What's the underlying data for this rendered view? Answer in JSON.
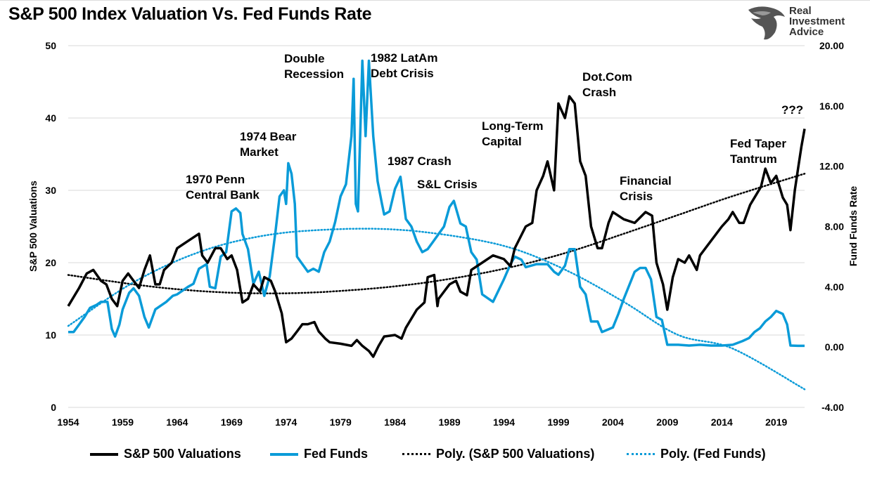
{
  "title": "S&P 500 Index Valuation Vs. Fed Funds Rate",
  "logo": {
    "text_lines": [
      "Real",
      "Investment",
      "Advice"
    ]
  },
  "chart_data": {
    "type": "line",
    "title": "S&P 500 Index Valuation Vs. Fed Funds Rate",
    "xlabel": "",
    "ylabel": "S&P 500 Valuations",
    "y2label": "Fund Funds Rate",
    "xlim": [
      1954,
      2021.6
    ],
    "ylim": [
      0,
      50
    ],
    "y2lim": [
      -4,
      20
    ],
    "x_ticks": [
      "1954",
      "1959",
      "1964",
      "1969",
      "1974",
      "1979",
      "1984",
      "1989",
      "1994",
      "1999",
      "2004",
      "2009",
      "2014",
      "2019"
    ],
    "y_ticks": [
      "0",
      "10",
      "20",
      "30",
      "40",
      "50"
    ],
    "y2_ticks": [
      "-4.00",
      "0.00",
      "4.00",
      "8.00",
      "12.00",
      "16.00",
      "20.00"
    ],
    "grid": true,
    "legend_position": "bottom",
    "colors": {
      "sp500": "#000000",
      "fedfunds": "#0a9bd8"
    },
    "series": [
      {
        "name": "S&P 500 Valuations",
        "axis": "left",
        "style": "solid",
        "x": [
          1954,
          1955,
          1955.7,
          1956.3,
          1957,
          1957.5,
          1958,
          1958.5,
          1959,
          1959.5,
          1960,
          1960.5,
          1961,
          1961.5,
          1962,
          1962.4,
          1962.8,
          1963.5,
          1964,
          1965,
          1966,
          1966.3,
          1966.8,
          1967.5,
          1968,
          1968.6,
          1969,
          1969.5,
          1970,
          1970.5,
          1971,
          1971.6,
          1972,
          1972.6,
          1973,
          1973.6,
          1974,
          1974.5,
          1975,
          1975.5,
          1976,
          1976.6,
          1977,
          1977.6,
          1978,
          1979,
          1980,
          1980.5,
          1981,
          1981.6,
          1982,
          1982.5,
          1983,
          1984,
          1984.6,
          1985,
          1986,
          1986.7,
          1987,
          1987.6,
          1987.9,
          1988,
          1989,
          1989.6,
          1990,
          1990.6,
          1991,
          1992,
          1993,
          1994,
          1994.6,
          1995,
          1996,
          1996.6,
          1997,
          1997.6,
          1998,
          1998.6,
          1999,
          1999.6,
          2000,
          2000.5,
          2001,
          2001.5,
          2002,
          2002.6,
          2003,
          2003.6,
          2004,
          2005,
          2006,
          2007,
          2007.6,
          2008,
          2008.6,
          2009,
          2009.5,
          2010,
          2010.6,
          2011,
          2011.7,
          2012,
          2013,
          2014,
          2014.6,
          2015,
          2015.6,
          2016,
          2016.6,
          2017,
          2017.6,
          2018,
          2018.5,
          2019,
          2019.6,
          2020,
          2020.3,
          2020.7,
          2021,
          2021.3,
          2021.6
        ],
        "values": [
          14,
          16.5,
          18.5,
          19,
          17.5,
          17,
          15,
          14,
          17.5,
          18.5,
          17.5,
          16.5,
          19,
          21,
          17,
          17,
          19,
          20,
          22,
          23,
          24,
          21,
          20,
          22,
          22,
          20.5,
          21,
          19,
          14.5,
          15,
          17,
          16,
          18,
          17.5,
          16,
          13,
          9,
          9.5,
          10.5,
          11.5,
          11.5,
          11.8,
          10.5,
          9.5,
          9,
          8.8,
          8.5,
          9.3,
          8.5,
          7.8,
          7,
          8.5,
          9.8,
          10,
          9.5,
          11,
          13.5,
          14.5,
          18,
          18.3,
          14,
          15,
          17,
          17.5,
          16,
          15.5,
          19,
          20,
          21,
          20.5,
          19.5,
          22,
          25,
          25.5,
          30,
          32,
          34,
          30,
          42,
          40,
          43,
          42,
          34,
          32,
          25,
          22,
          22,
          25.5,
          27,
          26,
          25.5,
          27,
          26.5,
          20,
          17,
          13.5,
          18,
          20.5,
          20,
          21,
          19,
          21,
          23,
          25,
          26,
          27,
          25.5,
          25.5,
          28,
          29,
          30.5,
          33,
          31,
          32,
          29,
          28,
          24.5,
          30,
          33,
          36,
          38.5
        ]
      },
      {
        "name": "Fed Funds",
        "axis": "right",
        "style": "solid",
        "x": [
          1954,
          1954.5,
          1955,
          1955.5,
          1956,
          1956.6,
          1957,
          1957.6,
          1958,
          1958.3,
          1958.7,
          1959,
          1959.6,
          1960,
          1960.5,
          1961,
          1961.4,
          1962,
          1962.6,
          1963,
          1963.6,
          1964,
          1965,
          1965.5,
          1966,
          1966.7,
          1967,
          1967.5,
          1968,
          1968.5,
          1969,
          1969.4,
          1969.8,
          1970,
          1970.5,
          1971,
          1971.5,
          1972,
          1972.5,
          1973,
          1973.4,
          1973.8,
          1974,
          1974.2,
          1974.5,
          1974.8,
          1975,
          1975.5,
          1976,
          1976.5,
          1977,
          1977.5,
          1978,
          1978.5,
          1979,
          1979.5,
          1980,
          1980.2,
          1980.4,
          1980.6,
          1981,
          1981.3,
          1981.6,
          1982,
          1982.4,
          1982.8,
          1983,
          1983.5,
          1984,
          1984.5,
          1985,
          1985.5,
          1986,
          1986.5,
          1987,
          1987.5,
          1988,
          1988.5,
          1989,
          1989.4,
          1990,
          1990.5,
          1991,
          1991.5,
          1992,
          1993,
          1994,
          1994.6,
          1995,
          1995.6,
          1996,
          1997,
          1998,
          1998.6,
          1999,
          1999.6,
          2000,
          2000.5,
          2001,
          2001.5,
          2002,
          2002.6,
          2003,
          2004,
          2004.5,
          2005,
          2006,
          2006.5,
          2007,
          2007.5,
          2008,
          2008.5,
          2009,
          2010,
          2011,
          2012,
          2013,
          2014,
          2015,
          2015.9,
          2016.5,
          2017,
          2017.5,
          2018,
          2018.5,
          2019,
          2019.6,
          2020,
          2020.3,
          2021,
          2021.6
        ],
        "values": [
          1.0,
          1.0,
          1.5,
          2.0,
          2.6,
          2.8,
          3.0,
          3.0,
          1.2,
          0.7,
          1.5,
          2.5,
          3.6,
          3.9,
          3.4,
          2.0,
          1.3,
          2.5,
          2.8,
          3.0,
          3.4,
          3.5,
          4.0,
          4.2,
          5.2,
          5.5,
          4.0,
          3.9,
          6.0,
          6.3,
          9.0,
          9.2,
          8.9,
          7.5,
          6.5,
          4.2,
          5.0,
          3.4,
          4.7,
          7.5,
          10.0,
          10.4,
          9.5,
          12.2,
          11.5,
          9.5,
          6.0,
          5.5,
          5.0,
          5.2,
          5.0,
          6.3,
          7.0,
          8.3,
          10.0,
          10.8,
          14,
          17.8,
          9.5,
          9.0,
          19,
          14,
          19,
          14,
          11,
          9.5,
          8.8,
          9.0,
          10.5,
          11.3,
          8.5,
          8.0,
          7.0,
          6.3,
          6.5,
          7.0,
          7.5,
          8.0,
          9.3,
          9.7,
          8.2,
          8.0,
          6.3,
          5.8,
          3.5,
          3.0,
          4.5,
          5.5,
          6.0,
          5.8,
          5.3,
          5.5,
          5.5,
          5.0,
          4.8,
          5.4,
          6.5,
          6.5,
          4.0,
          3.5,
          1.7,
          1.7,
          1.0,
          1.3,
          2.2,
          3.2,
          5.0,
          5.25,
          5.25,
          4.5,
          2.0,
          1.8,
          0.15,
          0.15,
          0.1,
          0.15,
          0.1,
          0.1,
          0.15,
          0.4,
          0.6,
          1.0,
          1.25,
          1.7,
          2.0,
          2.4,
          2.2,
          1.5,
          0.1,
          0.08,
          0.08
        ]
      },
      {
        "name": "Poly. (S&P 500 Valuations)",
        "axis": "left",
        "style": "dotted",
        "x": [
          1954,
          1960,
          1965,
          1970,
          1975,
          1980,
          1985,
          1990,
          1995,
          2000,
          2005,
          2010,
          2015,
          2021.6
        ],
        "values": [
          18.3,
          17.0,
          16.2,
          15.8,
          15.8,
          16.2,
          16.9,
          18.0,
          19.5,
          21.5,
          24.0,
          26.6,
          29.2,
          32.3
        ]
      },
      {
        "name": "Poly. (Fed Funds)",
        "axis": "right",
        "style": "dotted",
        "x": [
          1954,
          1960,
          1966,
          1972,
          1978,
          1984,
          1990,
          1995,
          2000,
          2005,
          2010,
          2015,
          2021.6
        ],
        "values": [
          1.4,
          4.3,
          6.3,
          7.4,
          7.8,
          7.8,
          7.3,
          6.5,
          5.0,
          3.0,
          0.8,
          -0.1,
          -2.8
        ]
      }
    ],
    "annotations": [
      {
        "id": "penn",
        "lines": [
          "1970 Penn",
          "Central Bank"
        ]
      },
      {
        "id": "bear",
        "lines": [
          "1974 Bear",
          "Market"
        ]
      },
      {
        "id": "double",
        "lines": [
          "Double",
          "Recession"
        ]
      },
      {
        "id": "latam",
        "lines": [
          "1982 LatAm",
          "Debt Crisis"
        ]
      },
      {
        "id": "crash87",
        "lines": [
          "1987 Crash"
        ]
      },
      {
        "id": "sl",
        "lines": [
          "S&L Crisis"
        ]
      },
      {
        "id": "ltcm",
        "lines": [
          "Long-Term",
          "Capital"
        ]
      },
      {
        "id": "dotcom",
        "lines": [
          "Dot.Com",
          "Crash"
        ]
      },
      {
        "id": "financial",
        "lines": [
          "Financial",
          "Crisis"
        ]
      },
      {
        "id": "taper",
        "lines": [
          "Fed Taper",
          "Tantrum"
        ]
      },
      {
        "id": "qqq",
        "lines": [
          "???"
        ]
      }
    ]
  }
}
